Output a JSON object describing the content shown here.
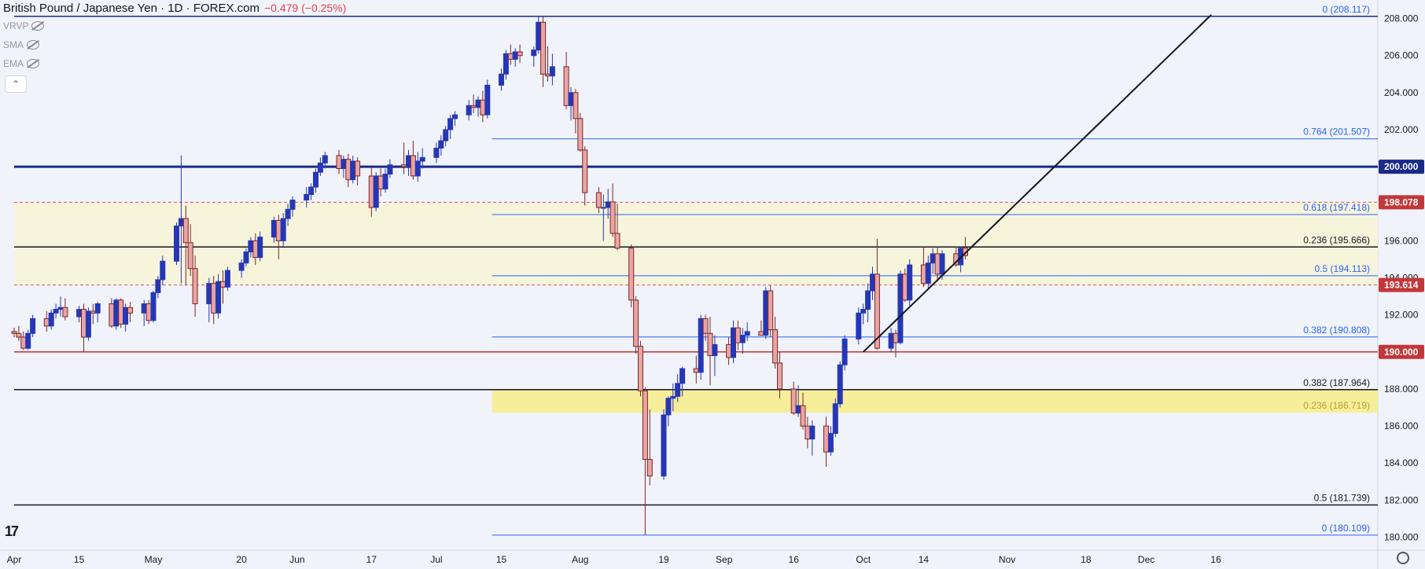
{
  "header": {
    "symbol": "British Pound / Japanese Yen · 1D · FOREX.com",
    "change": "−0.479 (−0.25%)"
  },
  "indicators": [
    {
      "label": "VRVP",
      "icon": "eye-off-icon"
    },
    {
      "label": "SMA",
      "icon": "eye-off-icon"
    },
    {
      "label": "EMA",
      "icon": "eye-off-icon"
    }
  ],
  "collapse_label": "⌃",
  "logo_text": "17",
  "chart_data": {
    "type": "candlestick",
    "y_axis": {
      "range": [
        179.3,
        209.0
      ],
      "ticks": [
        "180.000",
        "182.000",
        "184.000",
        "186.000",
        "188.000",
        "190.000",
        "192.000",
        "194.000",
        "196.000",
        "198.000",
        "200.000",
        "202.000",
        "204.000",
        "206.000",
        "208.000"
      ]
    },
    "x_axis": {
      "ticks": [
        {
          "label": "Apr",
          "day": 0
        },
        {
          "label": "15",
          "day": 14
        },
        {
          "label": "May",
          "day": 30
        },
        {
          "label": "20",
          "day": 49
        },
        {
          "label": "Jun",
          "day": 61
        },
        {
          "label": "17",
          "day": 77
        },
        {
          "label": "Jul",
          "day": 91
        },
        {
          "label": "15",
          "day": 105
        },
        {
          "label": "Aug",
          "day": 122
        },
        {
          "label": "19",
          "day": 140
        },
        {
          "label": "Sep",
          "day": 153
        },
        {
          "label": "16",
          "day": 168
        },
        {
          "label": "Oct",
          "day": 183
        },
        {
          "label": "14",
          "day": 196
        },
        {
          "label": "Nov",
          "day": 214
        },
        {
          "label": "18",
          "day": 231
        },
        {
          "label": "Dec",
          "day": 244
        },
        {
          "label": "16",
          "day": 259
        }
      ]
    },
    "zones": [
      {
        "from": 193.614,
        "to": 198.078,
        "color": "#f7f4dc",
        "start_day": 0
      },
      {
        "from": 186.719,
        "to": 187.964,
        "color": "#f7ee9b",
        "start_day": 103
      }
    ],
    "levels": [
      {
        "price": 208.117,
        "color": "#1a2a8a",
        "width": 1.5,
        "start_day": 0
      },
      {
        "price": 200.0,
        "color": "#1a2a8a",
        "width": 3,
        "start_day": 0,
        "tag": "200.000",
        "tag_bg": "#1a2a8a"
      },
      {
        "price": 198.078,
        "color": "#d05a5a",
        "width": 1,
        "dash": "4,3",
        "start_day": 0,
        "tag": "198.078",
        "tag_bg": "#c2373a"
      },
      {
        "price": 195.666,
        "color": "#131722",
        "width": 1.5,
        "start_day": 0
      },
      {
        "price": 193.614,
        "color": "#d05a5a",
        "width": 1,
        "dash": "4,3",
        "start_day": 0,
        "tag": "193.614",
        "tag_bg": "#c2373a"
      },
      {
        "price": 190.0,
        "color": "#d22b2b",
        "width": 1.5,
        "start_day": 0,
        "tag": "190.000",
        "tag_bg": "#c2373a"
      },
      {
        "price": 187.964,
        "color": "#131722",
        "width": 1.5,
        "start_day": 0
      },
      {
        "price": 181.739,
        "color": "#131722",
        "width": 1.5,
        "start_day": 0
      }
    ],
    "fib_lines": [
      {
        "price": 201.507,
        "start_day": 103
      },
      {
        "price": 197.418,
        "start_day": 103
      },
      {
        "price": 194.113,
        "start_day": 103
      },
      {
        "price": 190.808,
        "start_day": 103
      },
      {
        "price": 180.109,
        "start_day": 103
      }
    ],
    "annotations": [
      {
        "text": "0 (208.117)",
        "price": 208.117,
        "color": "#2962ff"
      },
      {
        "text": "0.764 (201.507)",
        "price": 201.507,
        "color": "#2962ff"
      },
      {
        "text": "0.618 (197.418)",
        "price": 197.418,
        "color": "#2962ff"
      },
      {
        "text": "0.236 (195.666)",
        "price": 195.666,
        "color": "#131722"
      },
      {
        "text": "0.5 (194.113)",
        "price": 194.113,
        "color": "#2962ff"
      },
      {
        "text": "0.382 (190.808)",
        "price": 190.808,
        "color": "#2962ff"
      },
      {
        "text": "0.382 (187.964)",
        "price": 187.964,
        "color": "#131722"
      },
      {
        "text": "0.236 (186.719)",
        "price": 186.719,
        "color": "#b8a02a"
      },
      {
        "text": "0.5 (181.739)",
        "price": 181.739,
        "color": "#131722"
      },
      {
        "text": "0 (180.109)",
        "price": 180.109,
        "color": "#2962ff"
      }
    ],
    "trendline": {
      "from": {
        "day": 183,
        "price": 190.0
      },
      "to": {
        "day": 258,
        "price": 208.2
      }
    },
    "candles": [
      [
        191.1,
        191.3,
        190.8,
        191.0
      ],
      [
        191.0,
        191.4,
        190.6,
        190.8
      ],
      [
        190.8,
        191.1,
        190.1,
        190.2
      ],
      [
        190.2,
        191.2,
        190.1,
        191.0
      ],
      [
        191.0,
        192.0,
        190.8,
        191.8
      ],
      [
        191.8,
        192.2,
        191.1,
        191.4
      ],
      [
        191.4,
        192.3,
        191.2,
        192.1
      ],
      [
        192.1,
        192.6,
        191.8,
        192.3
      ],
      [
        192.3,
        193.0,
        191.9,
        192.4
      ],
      [
        192.4,
        192.9,
        191.7,
        191.9
      ],
      [
        191.9,
        192.5,
        191.6,
        192.3
      ],
      [
        192.3,
        192.6,
        190.0,
        190.8
      ],
      [
        190.8,
        192.4,
        190.6,
        192.2
      ],
      [
        192.2,
        192.6,
        191.5,
        192.1
      ],
      [
        192.1,
        192.7,
        191.6,
        192.6
      ],
      [
        192.6,
        192.9,
        191.3,
        191.4
      ],
      [
        191.4,
        192.9,
        191.2,
        192.8
      ],
      [
        192.8,
        192.9,
        191.3,
        191.5
      ],
      [
        191.5,
        192.6,
        191.1,
        192.4
      ],
      [
        192.4,
        192.7,
        191.6,
        192.1
      ],
      [
        192.1,
        192.8,
        191.4,
        192.6
      ],
      [
        192.6,
        192.8,
        191.5,
        191.7
      ],
      [
        191.7,
        193.3,
        191.6,
        193.2
      ],
      [
        193.2,
        194.1,
        192.9,
        193.9
      ],
      [
        193.9,
        195.2,
        193.6,
        194.9
      ],
      [
        194.9,
        197.0,
        194.7,
        196.8
      ],
      [
        196.8,
        200.6,
        193.7,
        197.2
      ],
      [
        197.2,
        197.9,
        193.6,
        195.9
      ],
      [
        195.9,
        196.9,
        194.1,
        194.5
      ],
      [
        194.5,
        195.2,
        191.9,
        192.6
      ],
      [
        192.6,
        194.0,
        191.6,
        193.7
      ],
      [
        193.7,
        194.1,
        191.5,
        192.1
      ],
      [
        192.1,
        194.2,
        191.8,
        193.8
      ],
      [
        193.8,
        194.4,
        192.6,
        193.5
      ],
      [
        193.5,
        194.6,
        193.3,
        194.4
      ],
      [
        194.4,
        195.0,
        194.0,
        194.8
      ],
      [
        194.8,
        195.6,
        194.6,
        195.4
      ],
      [
        195.4,
        196.2,
        195.1,
        196.0
      ],
      [
        196.0,
        196.4,
        194.7,
        195.1
      ],
      [
        195.1,
        196.5,
        194.9,
        196.2
      ],
      [
        196.2,
        197.3,
        195.9,
        197.1
      ],
      [
        197.1,
        197.4,
        195.0,
        196.0
      ],
      [
        196.0,
        197.5,
        195.7,
        197.2
      ],
      [
        197.2,
        198.0,
        196.8,
        197.7
      ],
      [
        197.7,
        198.4,
        197.3,
        198.2
      ],
      [
        198.2,
        198.9,
        197.8,
        198.5
      ],
      [
        198.5,
        199.1,
        198.2,
        198.9
      ],
      [
        198.9,
        199.9,
        198.6,
        199.7
      ],
      [
        199.7,
        200.5,
        199.5,
        200.2
      ],
      [
        200.2,
        200.8,
        199.9,
        200.6
      ],
      [
        200.6,
        200.9,
        199.6,
        199.9
      ],
      [
        199.9,
        200.6,
        199.4,
        200.4
      ],
      [
        200.4,
        200.7,
        198.9,
        199.3
      ],
      [
        199.3,
        200.6,
        199.1,
        200.3
      ],
      [
        200.3,
        200.5,
        199.0,
        199.5
      ],
      [
        199.5,
        200.0,
        197.3,
        197.8
      ],
      [
        197.8,
        199.7,
        197.6,
        199.5
      ],
      [
        199.5,
        199.9,
        198.4,
        198.8
      ],
      [
        198.8,
        199.9,
        198.6,
        199.6
      ],
      [
        199.6,
        200.4,
        199.4,
        200.1
      ],
      [
        200.1,
        201.3,
        199.6,
        200.0
      ],
      [
        200.0,
        200.9,
        199.5,
        200.6
      ],
      [
        200.6,
        201.4,
        199.3,
        199.5
      ],
      [
        199.5,
        200.8,
        199.2,
        200.3
      ],
      [
        200.3,
        201.0,
        199.9,
        200.5
      ],
      [
        200.5,
        201.3,
        200.2,
        201.0
      ],
      [
        201.0,
        201.7,
        200.6,
        201.4
      ],
      [
        201.4,
        202.2,
        201.1,
        202.0
      ],
      [
        202.0,
        202.8,
        201.5,
        202.6
      ],
      [
        202.6,
        203.0,
        202.2,
        202.8
      ],
      [
        202.8,
        203.6,
        202.5,
        203.3
      ],
      [
        203.3,
        203.9,
        202.9,
        203.2
      ],
      [
        203.2,
        203.8,
        202.7,
        203.6
      ],
      [
        203.6,
        204.1,
        202.4,
        202.8
      ],
      [
        202.8,
        204.7,
        202.6,
        204.4
      ],
      [
        204.4,
        205.3,
        204.1,
        205.0
      ],
      [
        205.0,
        206.3,
        204.7,
        206.1
      ],
      [
        206.1,
        206.6,
        205.5,
        205.8
      ],
      [
        205.8,
        206.4,
        205.4,
        206.2
      ],
      [
        206.2,
        206.6,
        205.6,
        206.0
      ],
      [
        206.0,
        206.5,
        205.4,
        206.3
      ],
      [
        206.3,
        208.1,
        206.1,
        207.8
      ],
      [
        207.8,
        208.1,
        204.3,
        205.0
      ],
      [
        205.0,
        206.5,
        204.6,
        204.9
      ],
      [
        204.9,
        206.1,
        204.4,
        205.4
      ],
      [
        205.4,
        206.2,
        203.1,
        203.3
      ],
      [
        203.3,
        204.3,
        202.5,
        204.0
      ],
      [
        204.0,
        204.2,
        201.8,
        202.6
      ],
      [
        202.6,
        202.9,
        200.8,
        200.9
      ],
      [
        200.9,
        201.1,
        197.9,
        198.6
      ],
      [
        198.6,
        198.9,
        197.5,
        197.8
      ],
      [
        197.8,
        198.5,
        196.0,
        197.8
      ],
      [
        197.8,
        198.8,
        197.2,
        198.1
      ],
      [
        198.1,
        199.1,
        196.2,
        196.4
      ],
      [
        196.4,
        198.0,
        195.5,
        195.6
      ],
      [
        195.6,
        195.8,
        192.4,
        192.8
      ],
      [
        192.8,
        193.0,
        189.9,
        190.3
      ],
      [
        190.3,
        190.6,
        187.6,
        187.9
      ],
      [
        187.9,
        188.1,
        180.1,
        184.2
      ],
      [
        184.2,
        186.9,
        182.8,
        183.3
      ],
      [
        183.3,
        186.9,
        183.1,
        186.6
      ],
      [
        186.6,
        187.6,
        186.0,
        187.5
      ],
      [
        187.5,
        188.3,
        186.8,
        187.6
      ],
      [
        187.6,
        188.8,
        187.3,
        188.3
      ],
      [
        188.3,
        189.2,
        187.6,
        189.1
      ],
      [
        189.1,
        189.8,
        188.3,
        188.9
      ],
      [
        188.9,
        192.0,
        188.5,
        191.8
      ],
      [
        191.8,
        192.0,
        190.6,
        191.0
      ],
      [
        191.0,
        191.9,
        188.2,
        189.8
      ],
      [
        189.8,
        190.9,
        188.7,
        190.4
      ],
      [
        190.4,
        190.8,
        189.3,
        189.7
      ],
      [
        189.7,
        191.7,
        189.4,
        191.3
      ],
      [
        191.3,
        191.7,
        190.1,
        190.5
      ],
      [
        190.5,
        191.3,
        189.9,
        190.9
      ],
      [
        190.9,
        191.6,
        190.6,
        191.1
      ],
      [
        191.1,
        191.7,
        190.9,
        190.9
      ],
      [
        190.9,
        193.5,
        190.7,
        193.3
      ],
      [
        193.3,
        193.6,
        190.8,
        191.2
      ],
      [
        191.2,
        191.9,
        189.1,
        189.4
      ],
      [
        189.4,
        190.0,
        187.5,
        188.0
      ],
      [
        188.0,
        188.4,
        186.6,
        186.7
      ],
      [
        186.7,
        188.2,
        186.5,
        187.1
      ],
      [
        187.1,
        187.8,
        185.8,
        186.0
      ],
      [
        186.0,
        186.5,
        184.8,
        185.3
      ],
      [
        185.3,
        186.3,
        184.4,
        186.0
      ],
      [
        186.0,
        186.5,
        183.8,
        184.6
      ],
      [
        184.6,
        186.0,
        184.4,
        185.6
      ],
      [
        185.6,
        187.5,
        185.4,
        187.2
      ],
      [
        187.2,
        189.5,
        187.0,
        189.3
      ],
      [
        189.3,
        190.9,
        189.0,
        190.7
      ],
      [
        190.7,
        192.4,
        190.4,
        192.1
      ],
      [
        192.1,
        192.6,
        191.5,
        192.3
      ],
      [
        192.3,
        193.7,
        191.6,
        193.3
      ],
      [
        193.3,
        194.6,
        192.8,
        194.2
      ],
      [
        194.2,
        196.1,
        190.1,
        190.2
      ],
      [
        190.2,
        191.3,
        190.0,
        191.0
      ],
      [
        191.0,
        191.2,
        189.7,
        190.5
      ],
      [
        190.5,
        194.4,
        190.4,
        194.2
      ],
      [
        194.2,
        194.5,
        192.7,
        192.8
      ],
      [
        192.8,
        195.0,
        192.5,
        194.7
      ],
      [
        194.7,
        195.7,
        193.5,
        193.7
      ],
      [
        193.7,
        195.2,
        193.4,
        194.8
      ],
      [
        194.8,
        195.6,
        194.2,
        195.3
      ],
      [
        195.3,
        195.7,
        193.8,
        194.2
      ],
      [
        194.2,
        195.5,
        193.9,
        195.3
      ],
      [
        195.3,
        195.7,
        194.6,
        194.7
      ],
      [
        194.7,
        195.7,
        194.3,
        195.6
      ],
      [
        195.6,
        196.2,
        195.0,
        195.2
      ]
    ]
  }
}
